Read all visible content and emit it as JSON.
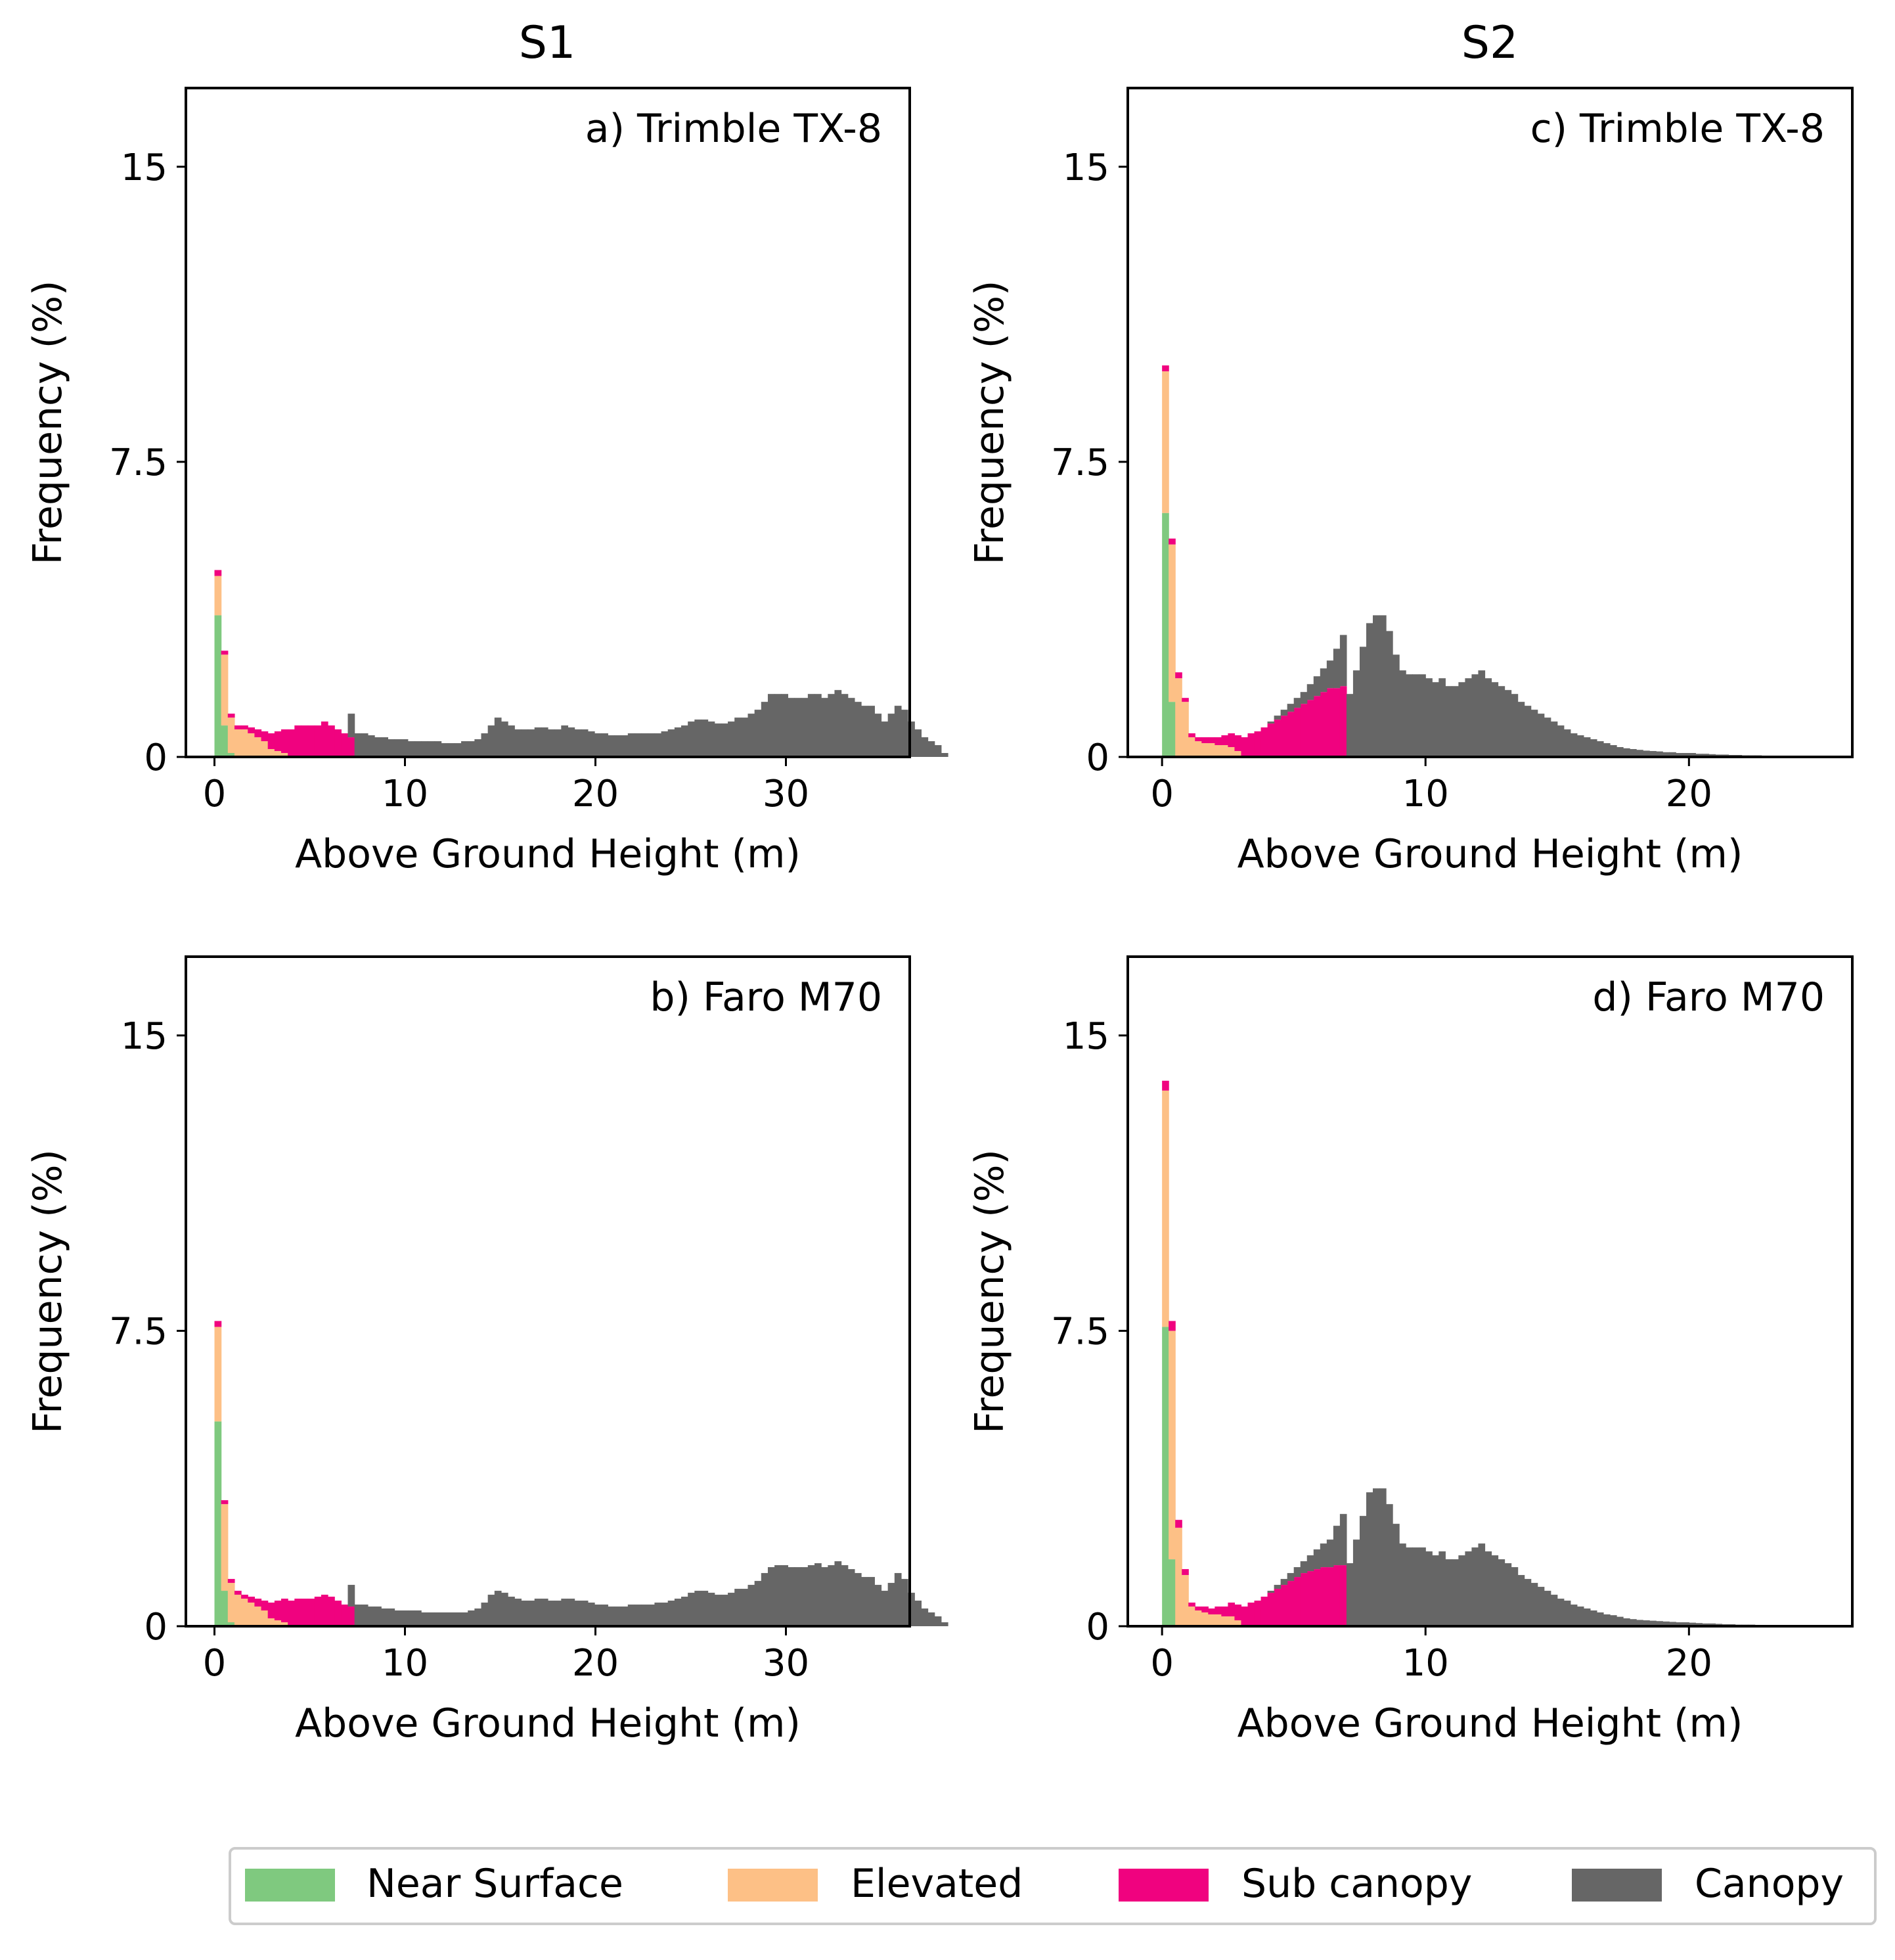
{
  "figure": {
    "column_titles": [
      "S1",
      "S2"
    ],
    "legend": [
      {
        "label": "Near Surface",
        "color": "#7fc97f"
      },
      {
        "label": "Elevated",
        "color": "#fdc086"
      },
      {
        "label": "Sub canopy",
        "color": "#f0027f"
      },
      {
        "label": "Canopy",
        "color": "#666666"
      }
    ]
  },
  "chart_data": [
    {
      "type": "bar",
      "panel": "a",
      "column": "S1",
      "title": "a) Trimble TX-8",
      "xlabel": "Above Ground Height (m)",
      "ylabel": "Frequency (%)",
      "xlim": [
        -1.5,
        36.5
      ],
      "ylim": [
        0,
        17
      ],
      "xticks": [
        0,
        10,
        20,
        30
      ],
      "yticks": [
        0,
        7.5,
        15
      ],
      "ytick_labels": [
        "0",
        "7.5",
        "15"
      ],
      "bin_width": 0.35,
      "series": [
        {
          "name": "Near Surface",
          "color": "#7fc97f",
          "x_start": 0,
          "values": [
            3.6,
            0.8,
            0.1
          ]
        },
        {
          "name": "Elevated",
          "color": "#fdc086",
          "x_start": 0,
          "values": [
            1.0,
            1.8,
            0.9,
            0.7,
            0.7,
            0.6,
            0.5,
            0.4,
            0.2,
            0.15,
            0.1
          ]
        },
        {
          "name": "Sub canopy",
          "color": "#f0027f",
          "x_start": 0,
          "values": [
            0.15,
            0.1,
            0.1,
            0.1,
            0.1,
            0.15,
            0.2,
            0.25,
            0.4,
            0.5,
            0.6,
            0.7,
            0.8,
            0.8,
            0.8,
            0.8,
            0.9,
            0.8,
            0.7,
            0.6,
            0.5
          ]
        },
        {
          "name": "Canopy",
          "color": "#666666",
          "x_start": 7.0,
          "values": [
            0.6,
            0.6,
            0.6,
            0.55,
            0.5,
            0.5,
            0.45,
            0.45,
            0.45,
            0.4,
            0.4,
            0.4,
            0.4,
            0.4,
            0.35,
            0.35,
            0.35,
            0.4,
            0.4,
            0.45,
            0.6,
            0.8,
            1.0,
            0.9,
            0.8,
            0.7,
            0.7,
            0.7,
            0.75,
            0.75,
            0.7,
            0.7,
            0.8,
            0.75,
            0.7,
            0.7,
            0.65,
            0.6,
            0.6,
            0.55,
            0.55,
            0.55,
            0.6,
            0.6,
            0.6,
            0.6,
            0.6,
            0.65,
            0.7,
            0.75,
            0.8,
            0.9,
            0.95,
            0.95,
            0.9,
            0.85,
            0.85,
            0.9,
            1.0,
            1.0,
            1.1,
            1.2,
            1.4,
            1.6,
            1.6,
            1.6,
            1.5,
            1.5,
            1.5,
            1.6,
            1.6,
            1.5,
            1.6,
            1.7,
            1.6,
            1.5,
            1.4,
            1.3,
            1.3,
            1.1,
            0.9,
            1.1,
            1.3,
            1.2,
            0.9,
            0.7,
            0.5,
            0.4,
            0.3,
            0.1
          ]
        }
      ]
    },
    {
      "type": "bar",
      "panel": "b",
      "column": "S1",
      "title": "b) Faro M70",
      "xlabel": "Above Ground Height (m)",
      "ylabel": "Frequency (%)",
      "xlim": [
        -1.5,
        36.5
      ],
      "ylim": [
        0,
        17
      ],
      "xticks": [
        0,
        10,
        20,
        30
      ],
      "yticks": [
        0,
        7.5,
        15
      ],
      "ytick_labels": [
        "0",
        "7.5",
        "15"
      ],
      "bin_width": 0.35,
      "series": [
        {
          "name": "Near Surface",
          "color": "#7fc97f",
          "x_start": 0,
          "values": [
            5.2,
            0.9,
            0.1
          ]
        },
        {
          "name": "Elevated",
          "color": "#fdc086",
          "x_start": 0,
          "values": [
            2.4,
            2.2,
            1.0,
            0.8,
            0.7,
            0.6,
            0.5,
            0.4,
            0.2,
            0.15,
            0.1
          ]
        },
        {
          "name": "Sub canopy",
          "color": "#f0027f",
          "x_start": 0,
          "values": [
            0.15,
            0.1,
            0.1,
            0.1,
            0.1,
            0.15,
            0.2,
            0.25,
            0.4,
            0.5,
            0.6,
            0.65,
            0.7,
            0.7,
            0.7,
            0.75,
            0.8,
            0.75,
            0.65,
            0.55,
            0.5
          ]
        },
        {
          "name": "Canopy",
          "color": "#666666",
          "x_start": 7.0,
          "values": [
            0.55,
            0.55,
            0.55,
            0.5,
            0.5,
            0.45,
            0.45,
            0.4,
            0.4,
            0.4,
            0.4,
            0.35,
            0.35,
            0.35,
            0.35,
            0.35,
            0.35,
            0.35,
            0.4,
            0.45,
            0.6,
            0.8,
            0.9,
            0.85,
            0.75,
            0.7,
            0.65,
            0.65,
            0.7,
            0.7,
            0.65,
            0.65,
            0.7,
            0.7,
            0.65,
            0.65,
            0.6,
            0.55,
            0.55,
            0.5,
            0.5,
            0.5,
            0.55,
            0.55,
            0.55,
            0.55,
            0.6,
            0.6,
            0.65,
            0.7,
            0.75,
            0.85,
            0.9,
            0.9,
            0.85,
            0.8,
            0.8,
            0.85,
            0.95,
            0.95,
            1.05,
            1.15,
            1.35,
            1.5,
            1.55,
            1.55,
            1.5,
            1.5,
            1.5,
            1.55,
            1.6,
            1.5,
            1.55,
            1.65,
            1.55,
            1.45,
            1.35,
            1.25,
            1.25,
            1.05,
            0.9,
            1.1,
            1.35,
            1.2,
            0.85,
            0.65,
            0.45,
            0.35,
            0.25,
            0.1
          ]
        }
      ]
    },
    {
      "type": "bar",
      "panel": "c",
      "column": "S2",
      "title": "c) Trimble TX-8",
      "xlabel": "Above Ground Height (m)",
      "ylabel": "Frequency (%)",
      "xlim": [
        -1.3,
        26.2
      ],
      "ylim": [
        0,
        17
      ],
      "xticks": [
        0,
        10,
        20
      ],
      "yticks": [
        0,
        7.5,
        15
      ],
      "ytick_labels": [
        "0",
        "7.5",
        "15"
      ],
      "bin_width": 0.25,
      "series": [
        {
          "name": "Near Surface",
          "color": "#7fc97f",
          "x_start": 0,
          "values": [
            6.2,
            1.4
          ]
        },
        {
          "name": "Elevated",
          "color": "#fdc086",
          "x_start": 0,
          "values": [
            3.6,
            4.0,
            2.0,
            1.4,
            0.5,
            0.4,
            0.35,
            0.35,
            0.3,
            0.3,
            0.25,
            0.15
          ]
        },
        {
          "name": "Sub canopy",
          "color": "#f0027f",
          "x_start": 0,
          "values": [
            0.15,
            0.15,
            0.15,
            0.1,
            0.1,
            0.1,
            0.15,
            0.15,
            0.2,
            0.25,
            0.35,
            0.4,
            0.5,
            0.6,
            0.65,
            0.75,
            0.85,
            0.95,
            1.05,
            1.15,
            1.25,
            1.35,
            1.45,
            1.55,
            1.65,
            1.75,
            1.75,
            1.8
          ]
        },
        {
          "name": "Canopy",
          "color": "#666666",
          "x_start": 4.0,
          "values": [
            0.05,
            0.1,
            0.15,
            0.2,
            0.25,
            0.3,
            0.4,
            0.5,
            0.6,
            0.7,
            1.0,
            1.3,
            1.6,
            2.2,
            2.8,
            3.4,
            3.6,
            3.6,
            3.2,
            2.6,
            2.2,
            2.1,
            2.1,
            2.1,
            2.0,
            1.9,
            2.0,
            1.8,
            1.8,
            1.9,
            2.0,
            2.1,
            2.2,
            2.0,
            1.9,
            1.8,
            1.7,
            1.6,
            1.4,
            1.3,
            1.2,
            1.1,
            1.0,
            0.9,
            0.8,
            0.7,
            0.6,
            0.55,
            0.5,
            0.45,
            0.4,
            0.35,
            0.3,
            0.25,
            0.22,
            0.2,
            0.18,
            0.16,
            0.15,
            0.14,
            0.12,
            0.12,
            0.1,
            0.1,
            0.1,
            0.08,
            0.08,
            0.07,
            0.06,
            0.06,
            0.05,
            0.05,
            0.04,
            0.04,
            0.04,
            0.03,
            0.03,
            0.03,
            0.02,
            0.02
          ]
        }
      ]
    },
    {
      "type": "bar",
      "panel": "d",
      "column": "S2",
      "title": "d) Faro M70",
      "xlabel": "Above Ground Height (m)",
      "ylabel": "Frequency (%)",
      "xlim": [
        -1.3,
        26.2
      ],
      "ylim": [
        0,
        17
      ],
      "xticks": [
        0,
        10,
        20
      ],
      "yticks": [
        0,
        7.5,
        15
      ],
      "ytick_labels": [
        "0",
        "7.5",
        "15"
      ],
      "bin_width": 0.25,
      "series": [
        {
          "name": "Near Surface",
          "color": "#7fc97f",
          "x_start": 0,
          "values": [
            7.6,
            1.7
          ]
        },
        {
          "name": "Elevated",
          "color": "#fdc086",
          "x_start": 0,
          "values": [
            6.0,
            5.8,
            2.5,
            1.3,
            0.5,
            0.4,
            0.35,
            0.3,
            0.3,
            0.25,
            0.25,
            0.15
          ]
        },
        {
          "name": "Sub canopy",
          "color": "#f0027f",
          "x_start": 0,
          "values": [
            0.25,
            0.25,
            0.2,
            0.15,
            0.1,
            0.1,
            0.15,
            0.15,
            0.2,
            0.25,
            0.35,
            0.4,
            0.5,
            0.6,
            0.65,
            0.75,
            0.85,
            0.95,
            1.05,
            1.15,
            1.25,
            1.35,
            1.4,
            1.45,
            1.5,
            1.5,
            1.55,
            1.55
          ]
        },
        {
          "name": "Canopy",
          "color": "#666666",
          "x_start": 4.0,
          "values": [
            0.05,
            0.1,
            0.15,
            0.2,
            0.25,
            0.3,
            0.4,
            0.5,
            0.6,
            0.7,
            1.0,
            1.3,
            1.6,
            2.2,
            2.8,
            3.4,
            3.5,
            3.5,
            3.1,
            2.6,
            2.1,
            2.0,
            2.0,
            2.0,
            1.9,
            1.8,
            1.9,
            1.7,
            1.7,
            1.8,
            1.9,
            2.0,
            2.1,
            1.9,
            1.8,
            1.7,
            1.6,
            1.5,
            1.3,
            1.2,
            1.1,
            1.0,
            0.9,
            0.8,
            0.7,
            0.65,
            0.55,
            0.5,
            0.45,
            0.4,
            0.35,
            0.3,
            0.28,
            0.24,
            0.2,
            0.18,
            0.16,
            0.15,
            0.14,
            0.13,
            0.12,
            0.11,
            0.1,
            0.1,
            0.09,
            0.08,
            0.07,
            0.07,
            0.06,
            0.05,
            0.05,
            0.04,
            0.04,
            0.04,
            0.03,
            0.03,
            0.03,
            0.02,
            0.02,
            0.02
          ]
        }
      ]
    }
  ]
}
